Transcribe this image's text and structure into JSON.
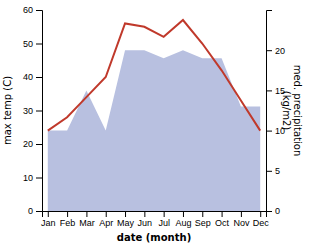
{
  "chart_data": {
    "type": "line",
    "xlabel": "date (month)",
    "ylabel": "max temp (C)",
    "y2label": "med. precipitation\n(kg/m2)",
    "categories": [
      "Jan",
      "Feb",
      "Mar",
      "Apr",
      "May",
      "Jun",
      "Jul",
      "Aug",
      "Sep",
      "Oct",
      "Nov",
      "Dec"
    ],
    "series": [
      {
        "type": "area",
        "axis": "y2",
        "color": "#b8c0e0",
        "values": [
          10,
          10,
          15,
          10,
          20,
          20,
          19,
          20,
          19,
          19,
          13,
          13
        ]
      },
      {
        "type": "line",
        "color": "#c0392b",
        "values": [
          24,
          28,
          34,
          40,
          56,
          55,
          52,
          57,
          50,
          42,
          33,
          24
        ]
      }
    ],
    "ylim": [
      0,
      60
    ],
    "yticks": [
      0,
      10,
      20,
      30,
      40,
      50,
      60
    ],
    "y2lim": [
      0,
      25
    ],
    "y2ticks": [
      0,
      5,
      10,
      15,
      20
    ],
    "grid": false
  }
}
